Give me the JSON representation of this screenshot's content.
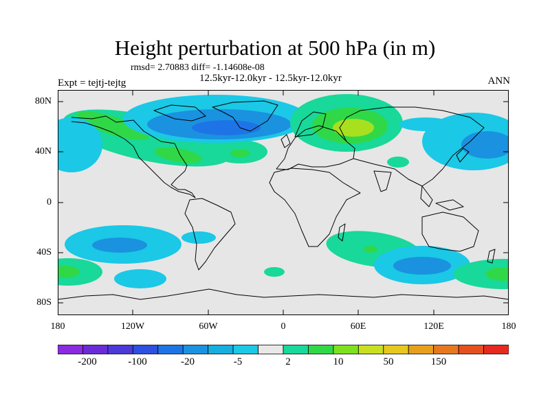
{
  "title": "Height perturbation at 500 hPa (in m)",
  "stats_line": "rmsd= 2.70883 diff= -1.14608e-08",
  "period_line": "12.5kyr-12.0kyr - 12.5kyr-12.0kyr",
  "experiment_label": "Expt = tejtj-tejtg",
  "season": "ANN",
  "lat_ticks": [
    "80N",
    "40N",
    "0",
    "40S",
    "80S"
  ],
  "lon_ticks": [
    "180",
    "120W",
    "60W",
    "0",
    "60E",
    "120E",
    "180"
  ],
  "colorbar": {
    "labels": [
      "-200",
      "-100",
      "-20",
      "-5",
      "2",
      "10",
      "50",
      "150"
    ],
    "colors": [
      "#8b2be2",
      "#6a2cd8",
      "#4b3ad8",
      "#2f4fe0",
      "#1e74e6",
      "#1a92e0",
      "#17aee0",
      "#1bc8e6",
      "#e8e8e8",
      "#18d89a",
      "#30d848",
      "#7ee020",
      "#c8e020",
      "#e6c81e",
      "#e6a01e",
      "#e67820",
      "#e65020",
      "#e62a20"
    ]
  },
  "field_colors": {
    "background": "#e6e6e6",
    "neg_light": "#1bc8e6",
    "neg_mid": "#1a92e0",
    "neg_dark": "#1e74e6",
    "pos_light": "#18d89a",
    "pos_mid": "#30d848",
    "pos_strong": "#a8e020"
  }
}
